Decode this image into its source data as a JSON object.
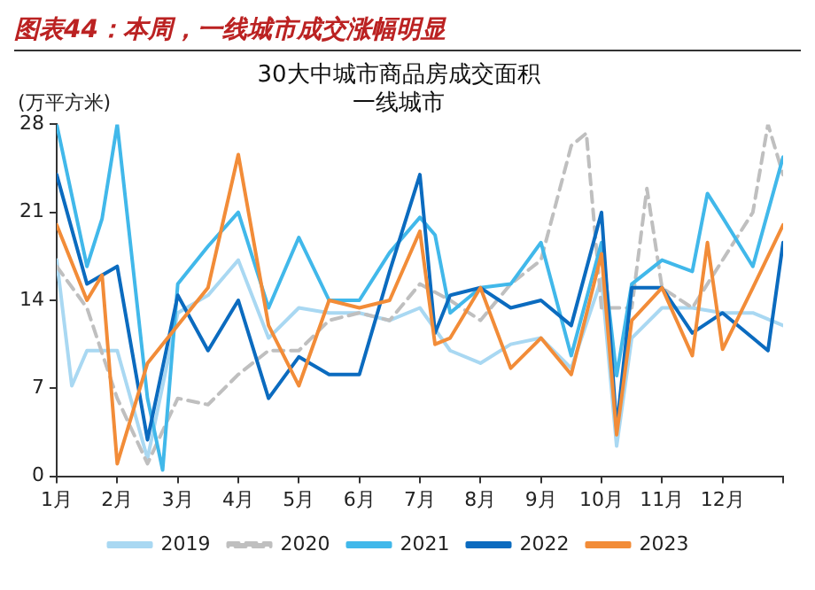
{
  "chart_data": {
    "type": "line",
    "title": "图表44：本周，一线城市成交涨幅明显",
    "subtitle": "30大中城市商品房成交面积",
    "annotations": [
      "一线城市"
    ],
    "ylabel": "(万平方米)",
    "xlim": [
      1,
      13
    ],
    "xticks": [
      {
        "value": 1,
        "label": "1月"
      },
      {
        "value": 2,
        "label": "2月"
      },
      {
        "value": 3,
        "label": "3月"
      },
      {
        "value": 4,
        "label": "4月"
      },
      {
        "value": 5,
        "label": "5月"
      },
      {
        "value": 6,
        "label": "6月"
      },
      {
        "value": 7,
        "label": "7月"
      },
      {
        "value": 8,
        "label": "8月"
      },
      {
        "value": 9,
        "label": "9月"
      },
      {
        "value": 10,
        "label": "10月"
      },
      {
        "value": 11,
        "label": "11月"
      },
      {
        "value": 12,
        "label": "12月"
      },
      {
        "value": 13,
        "label": null
      }
    ],
    "ylim": [
      0,
      28
    ],
    "yticks": [
      0,
      7,
      14,
      21,
      28
    ],
    "grid": false,
    "legend": "bottom",
    "marker": "none",
    "series": [
      {
        "name": "2019",
        "color": "#a9d8f2",
        "line_style": "solid",
        "x": [
          1,
          1.25,
          1.5,
          2,
          2.5,
          3,
          3.5,
          4,
          4.5,
          5,
          5.5,
          6,
          6.5,
          7,
          7.5,
          8,
          8.5,
          9,
          9.5,
          10,
          10.25,
          10.5,
          11,
          11.5,
          12,
          12.5,
          13
        ],
        "values": [
          17.2,
          7.2,
          10,
          10,
          1.4,
          13,
          14.4,
          17.2,
          11,
          13.4,
          13,
          13,
          12.4,
          13.4,
          10,
          9,
          10.5,
          11,
          8.6,
          15.7,
          2.4,
          11,
          13.4,
          13.4,
          13,
          13,
          12
        ]
      },
      {
        "name": "2020",
        "color": "#bfbfbf",
        "line_style": "dashed",
        "x": [
          1,
          1.5,
          2,
          2.5,
          3,
          3.5,
          4,
          4.5,
          5,
          5.5,
          6,
          6.5,
          7,
          7.5,
          8,
          8.5,
          9,
          9.5,
          9.75,
          10,
          10.5,
          10.75,
          11,
          11.5,
          12,
          12.5,
          12.75,
          13
        ],
        "values": [
          16.7,
          13.4,
          6.2,
          1,
          6.2,
          5.7,
          8.1,
          10,
          10,
          12.4,
          13,
          12.4,
          15.3,
          14,
          12.4,
          15.3,
          17.2,
          26.3,
          27.3,
          13.4,
          13.4,
          22.9,
          15,
          13.4,
          17.2,
          21,
          28,
          24
        ]
      },
      {
        "name": "2021",
        "color": "#41b8ea",
        "line_style": "solid",
        "x": [
          1,
          1.5,
          1.75,
          2,
          2.5,
          2.75,
          3,
          3.5,
          4,
          4.5,
          5,
          5.5,
          6,
          6.5,
          7,
          7.25,
          7.5,
          8,
          8.5,
          9,
          9.5,
          10,
          10.25,
          10.5,
          11,
          11.5,
          11.75,
          12,
          12.5,
          13
        ],
        "values": [
          28,
          16.7,
          20.5,
          28,
          6.2,
          0.5,
          15.3,
          18.3,
          21,
          13.4,
          19,
          14,
          14,
          17.8,
          20.6,
          19.2,
          13,
          15,
          15.3,
          18.6,
          9.6,
          18.6,
          8,
          15.3,
          17.2,
          16.3,
          22.5,
          20.6,
          16.7,
          25.4
        ]
      },
      {
        "name": "2022",
        "color": "#0b6bbf",
        "line_style": "solid",
        "x": [
          1,
          1.5,
          2,
          2.5,
          3,
          3.5,
          4,
          4.5,
          5,
          5.5,
          6,
          6.5,
          7,
          7.25,
          7.5,
          8,
          8.5,
          9,
          9.5,
          10,
          10.25,
          10.5,
          11,
          11.5,
          12,
          12.5,
          12.75,
          13
        ],
        "values": [
          24,
          15.3,
          16.7,
          2.9,
          14.4,
          10,
          14,
          6.2,
          9.5,
          8.1,
          8.1,
          16.3,
          24,
          11.4,
          14.4,
          15,
          13.4,
          14,
          12,
          21,
          3.8,
          15,
          15,
          11.4,
          13,
          11,
          10,
          18.6
        ]
      },
      {
        "name": "2023",
        "color": "#f28c38",
        "line_style": "solid",
        "x": [
          1,
          1.5,
          1.75,
          2,
          2.5,
          3,
          3.5,
          4,
          4.5,
          5,
          5.5,
          6,
          6.5,
          7,
          7.25,
          7.5,
          8,
          8.5,
          9,
          9.5,
          10,
          10.25,
          10.5,
          11,
          11.5,
          11.75,
          12,
          12.5,
          13
        ],
        "values": [
          20,
          14,
          16,
          1,
          9,
          12,
          15,
          25.6,
          12,
          7.2,
          14,
          13.4,
          14,
          19.5,
          10.5,
          11,
          15,
          8.6,
          11,
          8.1,
          17.7,
          3.3,
          12.4,
          15,
          9.6,
          18.6,
          10.1,
          15,
          20
        ]
      }
    ]
  }
}
